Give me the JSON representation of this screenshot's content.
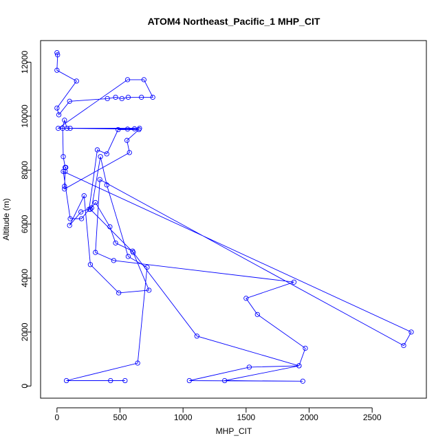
{
  "chart_data": {
    "type": "line",
    "title": "ATOM4 Northeast_Pacific_1 MHP_CIT",
    "xlabel": "MHP_CIT",
    "ylabel": "Altitude (m)",
    "xlim": [
      -130,
      2930
    ],
    "ylim": [
      -450,
      12800
    ],
    "x_ticks": [
      0,
      500,
      1000,
      1500,
      2000,
      2500
    ],
    "y_ticks": [
      0,
      2000,
      4000,
      6000,
      8000,
      10000,
      12000
    ],
    "grid": false,
    "box": true,
    "markers": "open-circle",
    "color": "#0000ff",
    "series": [
      {
        "x": [
          0,
          5,
          0,
          155,
          0,
          15,
          100,
          400,
          465,
          515,
          565,
          670,
          760,
          690,
          560,
          10,
          105,
          655,
          615,
          560,
          80,
          60,
          45,
          50,
          65,
          70,
          65,
          60,
          60,
          575,
          555,
          650,
          485,
          395,
          320,
          255,
          195,
          105,
          50,
          2810,
          2750,
          340,
          305,
          450,
          1880,
          1500,
          1590,
          1970,
          1920,
          1525,
          1050,
          1950,
          1330,
          1920,
          1110,
          605,
          265,
          305,
          420,
          465,
          600,
          730,
          490,
          265,
          215,
          100,
          190,
          275,
          345,
          395,
          565,
          715,
          640,
          75,
          425,
          540
        ],
        "y": [
          12350,
          12270,
          11700,
          11300,
          10300,
          10050,
          10550,
          10650,
          10700,
          10650,
          10700,
          10700,
          10700,
          11350,
          11350,
          9550,
          9550,
          9550,
          9530,
          9520,
          9550,
          9850,
          9550,
          8500,
          8100,
          8100,
          7950,
          7400,
          7300,
          8650,
          9100,
          9500,
          9500,
          8600,
          8750,
          6550,
          6200,
          6200,
          7950,
          2000,
          1500,
          7650,
          4950,
          4650,
          3850,
          3250,
          2650,
          1400,
          750,
          700,
          200,
          180,
          200,
          750,
          1850,
          4950,
          6550,
          6800,
          5900,
          5300,
          5000,
          3550,
          3450,
          4500,
          7050,
          5950,
          6450,
          6600,
          8500,
          7450,
          4800,
          4400,
          850,
          200,
          200,
          200
        ]
      }
    ]
  }
}
